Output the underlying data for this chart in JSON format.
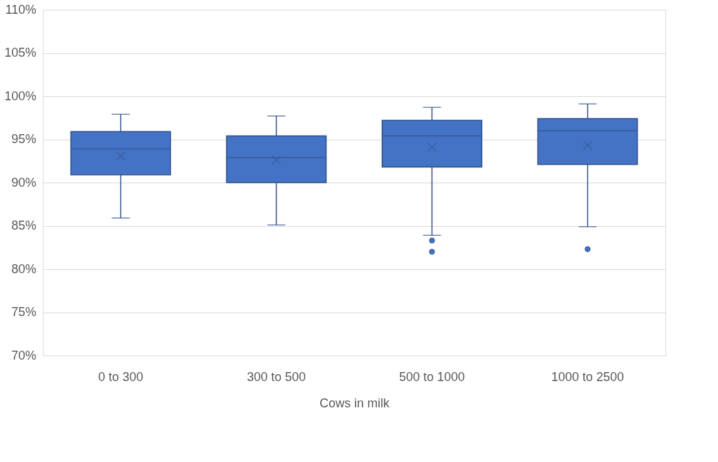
{
  "chart_data": {
    "type": "box",
    "xlabel": "Cows in milk",
    "categories": [
      "0 to 300",
      "300 to 500",
      "500 to  1000",
      "1000 to 2500"
    ],
    "series": [
      {
        "color": "#4472c4",
        "boxes": [
          {
            "low": 85.9,
            "q1": 90.9,
            "median": 93.9,
            "q3": 95.9,
            "high": 97.9,
            "mean": 93.1
          },
          {
            "low": 85.1,
            "q1": 90.0,
            "median": 92.9,
            "q3": 95.4,
            "high": 97.7,
            "mean": 92.6
          },
          {
            "low": 83.9,
            "q1": 91.8,
            "median": 95.4,
            "q3": 97.2,
            "high": 98.7,
            "mean": 94.1,
            "outliers": [
              83.3,
              82.0
            ]
          },
          {
            "low": 84.9,
            "q1": 92.1,
            "median": 96.0,
            "q3": 97.4,
            "high": 99.1,
            "mean": 94.3,
            "outliers": [
              82.3
            ]
          }
        ]
      }
    ],
    "ylim": [
      70,
      110
    ],
    "yticks": [
      {
        "value": 70,
        "label": "70%"
      },
      {
        "value": 75,
        "label": "75%"
      },
      {
        "value": 80,
        "label": "80%"
      },
      {
        "value": 85,
        "label": "85%"
      },
      {
        "value": 90,
        "label": "90%"
      },
      {
        "value": 95,
        "label": "95%"
      },
      {
        "value": 100,
        "label": "100%"
      },
      {
        "value": 105,
        "label": "105%"
      },
      {
        "value": 110,
        "label": "110%"
      }
    ],
    "grid": "y"
  }
}
